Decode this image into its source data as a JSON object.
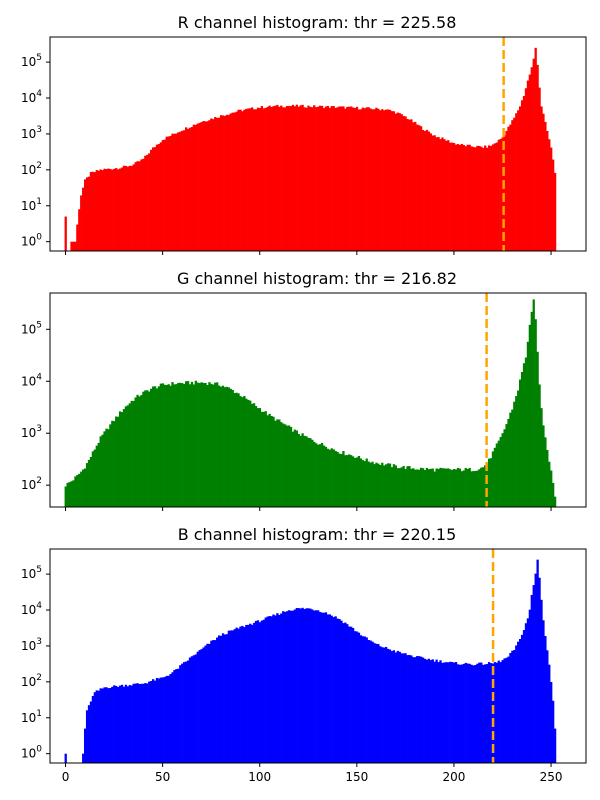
{
  "chart_data": [
    {
      "type": "bar",
      "color": "#ff0000",
      "title": "R channel histogram: thr = 225.58",
      "threshold": 225.58,
      "threshold_color": "#ffa500",
      "xlim": [
        -8,
        268
      ],
      "yscale": "log",
      "ylim": [
        0.55,
        500000
      ],
      "ytick_values": [
        1,
        10,
        100,
        1000,
        10000,
        100000
      ],
      "ytick_labels": [
        "10^0",
        "10^1",
        "10^2",
        "10^3",
        "10^4",
        "10^5"
      ],
      "xtick_values": [
        0,
        50,
        100,
        150,
        200,
        250
      ],
      "xtick_labels": [],
      "bin_range": [
        0,
        252
      ],
      "anchors": [
        [
          0,
          5
        ],
        [
          1,
          0.1
        ],
        [
          2,
          0.1
        ],
        [
          3,
          1
        ],
        [
          4,
          1
        ],
        [
          5,
          1
        ],
        [
          6,
          3
        ],
        [
          7,
          8
        ],
        [
          8,
          20
        ],
        [
          10,
          50
        ],
        [
          13,
          80
        ],
        [
          18,
          100
        ],
        [
          25,
          110
        ],
        [
          30,
          120
        ],
        [
          35,
          140
        ],
        [
          40,
          200
        ],
        [
          45,
          400
        ],
        [
          50,
          700
        ],
        [
          60,
          1300
        ],
        [
          70,
          2200
        ],
        [
          80,
          3200
        ],
        [
          90,
          4500
        ],
        [
          100,
          5500
        ],
        [
          110,
          6000
        ],
        [
          120,
          6000
        ],
        [
          130,
          5800
        ],
        [
          140,
          5600
        ],
        [
          150,
          5300
        ],
        [
          160,
          5000
        ],
        [
          165,
          4800
        ],
        [
          170,
          4000
        ],
        [
          175,
          3000
        ],
        [
          180,
          2000
        ],
        [
          185,
          1300
        ],
        [
          190,
          900
        ],
        [
          195,
          700
        ],
        [
          200,
          550
        ],
        [
          205,
          480
        ],
        [
          210,
          450
        ],
        [
          215,
          430
        ],
        [
          218,
          450
        ],
        [
          220,
          500
        ],
        [
          222,
          600
        ],
        [
          225,
          800
        ],
        [
          228,
          1500
        ],
        [
          231,
          2800
        ],
        [
          234,
          6000
        ],
        [
          236,
          12000
        ],
        [
          238,
          30000
        ],
        [
          240,
          70000
        ],
        [
          241,
          120000
        ],
        [
          242,
          250000
        ],
        [
          243,
          90000
        ],
        [
          244,
          20000
        ],
        [
          245,
          6000
        ],
        [
          246,
          3500
        ],
        [
          247,
          2000
        ],
        [
          248,
          1200
        ],
        [
          249,
          700
        ],
        [
          250,
          400
        ],
        [
          251,
          200
        ],
        [
          252,
          80
        ]
      ]
    },
    {
      "type": "bar",
      "color": "#008000",
      "title": "G channel histogram: thr = 216.82",
      "threshold": 216.82,
      "threshold_color": "#ffa500",
      "xlim": [
        -8,
        268
      ],
      "yscale": "log",
      "ylim": [
        38,
        500000
      ],
      "ytick_values": [
        100,
        1000,
        10000,
        100000
      ],
      "ytick_labels": [
        "10^2",
        "10^3",
        "10^4",
        "10^5"
      ],
      "xtick_values": [
        0,
        50,
        100,
        150,
        200,
        250
      ],
      "xtick_labels": [],
      "bin_range": [
        0,
        252
      ],
      "anchors": [
        [
          0,
          100
        ],
        [
          3,
          120
        ],
        [
          6,
          150
        ],
        [
          9,
          200
        ],
        [
          12,
          300
        ],
        [
          15,
          500
        ],
        [
          18,
          800
        ],
        [
          22,
          1300
        ],
        [
          26,
          2000
        ],
        [
          30,
          3000
        ],
        [
          35,
          4500
        ],
        [
          40,
          6000
        ],
        [
          45,
          7500
        ],
        [
          50,
          8500
        ],
        [
          55,
          9000
        ],
        [
          60,
          9200
        ],
        [
          65,
          9400
        ],
        [
          70,
          9400
        ],
        [
          75,
          9200
        ],
        [
          80,
          8500
        ],
        [
          85,
          7000
        ],
        [
          90,
          5500
        ],
        [
          95,
          4000
        ],
        [
          100,
          3000
        ],
        [
          105,
          2200
        ],
        [
          110,
          1700
        ],
        [
          115,
          1300
        ],
        [
          120,
          1000
        ],
        [
          125,
          800
        ],
        [
          130,
          650
        ],
        [
          135,
          550
        ],
        [
          140,
          450
        ],
        [
          145,
          400
        ],
        [
          150,
          350
        ],
        [
          155,
          300
        ],
        [
          160,
          270
        ],
        [
          165,
          250
        ],
        [
          170,
          230
        ],
        [
          175,
          220
        ],
        [
          180,
          210
        ],
        [
          190,
          200
        ],
        [
          200,
          200
        ],
        [
          210,
          200
        ],
        [
          215,
          220
        ],
        [
          218,
          300
        ],
        [
          221,
          500
        ],
        [
          224,
          800
        ],
        [
          227,
          1500
        ],
        [
          230,
          3000
        ],
        [
          233,
          7000
        ],
        [
          235,
          15000
        ],
        [
          237,
          30000
        ],
        [
          238,
          60000
        ],
        [
          239,
          120000
        ],
        [
          240,
          200000
        ],
        [
          241,
          350000
        ],
        [
          242,
          150000
        ],
        [
          243,
          40000
        ],
        [
          244,
          8000
        ],
        [
          245,
          3000
        ],
        [
          246,
          1500
        ],
        [
          247,
          800
        ],
        [
          248,
          500
        ],
        [
          249,
          300
        ],
        [
          250,
          200
        ],
        [
          251,
          120
        ],
        [
          252,
          60
        ]
      ]
    },
    {
      "type": "bar",
      "color": "#0000ff",
      "title": "B channel histogram: thr = 220.15",
      "threshold": 220.15,
      "threshold_color": "#ffa500",
      "xlim": [
        -8,
        268
      ],
      "yscale": "log",
      "ylim": [
        0.55,
        500000
      ],
      "ytick_values": [
        1,
        10,
        100,
        1000,
        10000,
        100000
      ],
      "ytick_labels": [
        "10^0",
        "10^1",
        "10^2",
        "10^3",
        "10^4",
        "10^5"
      ],
      "xtick_values": [
        0,
        50,
        100,
        150,
        200,
        250
      ],
      "xtick_labels": [
        "0",
        "50",
        "100",
        "150",
        "200",
        "250"
      ],
      "bin_range": [
        0,
        252
      ],
      "anchors": [
        [
          0,
          1
        ],
        [
          1,
          0.1
        ],
        [
          8,
          0.1
        ],
        [
          9,
          1
        ],
        [
          10,
          5
        ],
        [
          11,
          15
        ],
        [
          13,
          30
        ],
        [
          15,
          50
        ],
        [
          20,
          70
        ],
        [
          30,
          80
        ],
        [
          40,
          90
        ],
        [
          45,
          110
        ],
        [
          50,
          130
        ],
        [
          55,
          180
        ],
        [
          60,
          300
        ],
        [
          65,
          500
        ],
        [
          70,
          800
        ],
        [
          75,
          1300
        ],
        [
          80,
          2000
        ],
        [
          90,
          3300
        ],
        [
          100,
          5000
        ],
        [
          110,
          8000
        ],
        [
          115,
          10000
        ],
        [
          120,
          11000
        ],
        [
          125,
          11000
        ],
        [
          130,
          10000
        ],
        [
          135,
          8000
        ],
        [
          140,
          6000
        ],
        [
          145,
          4000
        ],
        [
          150,
          2500
        ],
        [
          155,
          1600
        ],
        [
          160,
          1100
        ],
        [
          170,
          700
        ],
        [
          180,
          500
        ],
        [
          190,
          400
        ],
        [
          200,
          330
        ],
        [
          210,
          310
        ],
        [
          215,
          320
        ],
        [
          220,
          330
        ],
        [
          222,
          350
        ],
        [
          225,
          400
        ],
        [
          228,
          500
        ],
        [
          231,
          800
        ],
        [
          234,
          1500
        ],
        [
          236,
          3000
        ],
        [
          238,
          6000
        ],
        [
          239,
          10000
        ],
        [
          240,
          25000
        ],
        [
          241,
          50000
        ],
        [
          242,
          100000
        ],
        [
          243,
          250000
        ],
        [
          244,
          80000
        ],
        [
          245,
          20000
        ],
        [
          246,
          5000
        ],
        [
          247,
          2000
        ],
        [
          248,
          800
        ],
        [
          249,
          300
        ],
        [
          250,
          100
        ],
        [
          251,
          30
        ],
        [
          252,
          5
        ]
      ]
    }
  ]
}
